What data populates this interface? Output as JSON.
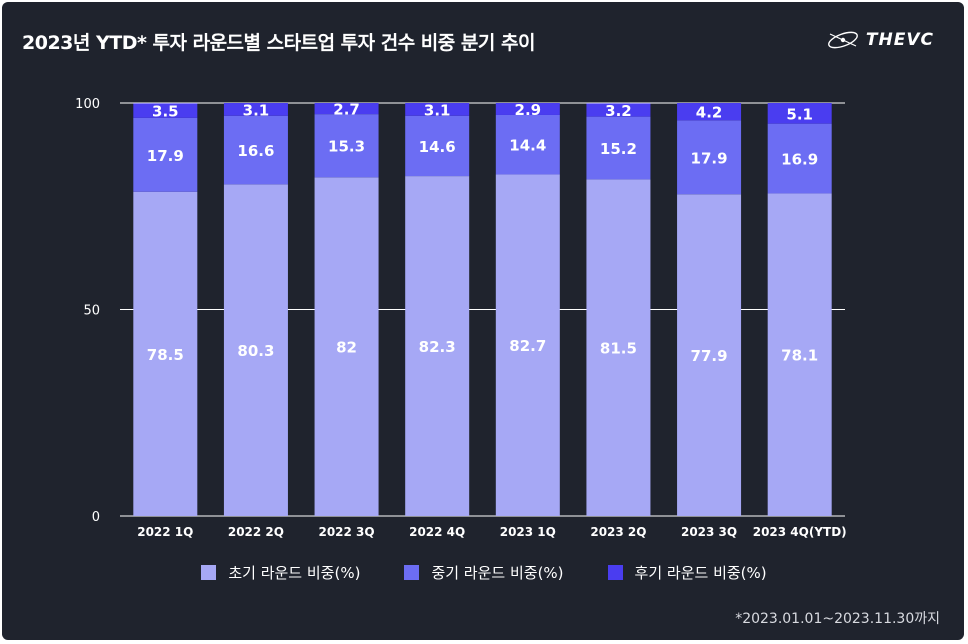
{
  "header": {
    "title": "2023년 YTD* 투자 라운드별 스타트업 투자 건수 비중 분기 추이",
    "brand": "THEVC",
    "brand_icon": "thevc-logo-icon"
  },
  "footnote": "*2023.01.01~2023.11.30까지",
  "chart_data": {
    "type": "bar",
    "stacked": true,
    "categories": [
      "2022 1Q",
      "2022 2Q",
      "2022 3Q",
      "2022 4Q",
      "2023 1Q",
      "2023 2Q",
      "2023 3Q",
      "2023 4Q(YTD)"
    ],
    "series": [
      {
        "name": "초기 라운드 비중(%)",
        "color": "#a6a8f5",
        "values": [
          78.5,
          80.3,
          82,
          82.3,
          82.7,
          81.5,
          77.9,
          78.1
        ]
      },
      {
        "name": "중기 라운드 비중(%)",
        "color": "#6c6df3",
        "values": [
          17.9,
          16.6,
          15.3,
          14.6,
          14.4,
          15.2,
          17.9,
          16.9
        ]
      },
      {
        "name": "후기 라운드 비중(%)",
        "color": "#4a3df0",
        "values": [
          3.5,
          3.1,
          2.7,
          3.1,
          2.9,
          3.2,
          4.2,
          5.1
        ]
      }
    ],
    "ylim": [
      0,
      100
    ],
    "yticks": [
      0,
      50,
      100
    ],
    "grid": true,
    "legend_position": "bottom"
  }
}
